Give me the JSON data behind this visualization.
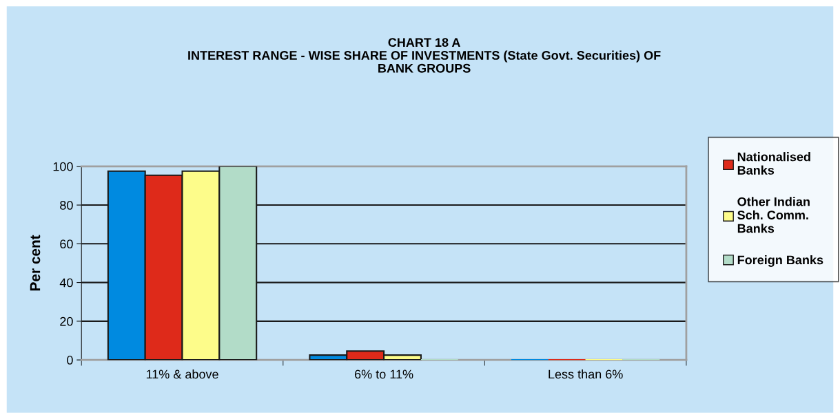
{
  "chart_data": {
    "type": "bar",
    "title": "CHART 18 A\nINTEREST RANGE - WISE SHARE OF INVESTMENTS (State Govt. Securities) OF\nBANK GROUPS",
    "ylabel": "Per cent",
    "categories": [
      "11% & above",
      "6% to 11%",
      "Less than 6%"
    ],
    "series": [
      {
        "color": "#008ae0",
        "values": [
          97.5,
          2.5,
          0
        ]
      },
      {
        "name": "Nationalised\nBanks",
        "color": "#de2a1a",
        "values": [
          95.4,
          4.6,
          0
        ]
      },
      {
        "name": "Other Indian\nSch. Comm.\nBanks",
        "color": "#fdfc8a",
        "values": [
          97.5,
          2.5,
          0
        ]
      },
      {
        "name": "Foreign Banks",
        "color": "#b2dcc8",
        "values": [
          100,
          0,
          0
        ]
      }
    ],
    "ylim": [
      0,
      100
    ],
    "yticks": [
      0,
      20,
      40,
      60,
      80,
      100
    ],
    "grid": "y",
    "legend": "right"
  }
}
